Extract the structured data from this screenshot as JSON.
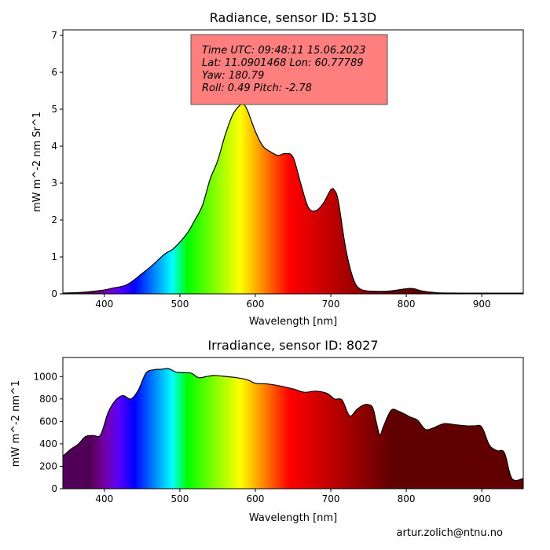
{
  "footer_text": "artur.zolich@ntnu.no",
  "chart_data": [
    {
      "type": "area",
      "title": "Radiance, sensor ID: 513D",
      "xlabel": "Wavelength [nm]",
      "ylabel": "mW m^-2 nm Sr^1",
      "xlim": [
        345,
        955
      ],
      "ylim": [
        0,
        7.15
      ],
      "xticks": [
        400,
        500,
        600,
        700,
        800,
        900
      ],
      "yticks": [
        0,
        1,
        2,
        3,
        4,
        5,
        6,
        7
      ],
      "fill": "spectrum colors by wavelength",
      "x": [
        345,
        370,
        395,
        410,
        430,
        450,
        465,
        480,
        490,
        500,
        510,
        520,
        530,
        540,
        550,
        560,
        570,
        580,
        585,
        590,
        600,
        610,
        620,
        630,
        640,
        650,
        660,
        670,
        680,
        690,
        700,
        705,
        710,
        720,
        730,
        740,
        760,
        780,
        800,
        810,
        820,
        840,
        870,
        900,
        930,
        955
      ],
      "y": [
        0.02,
        0.04,
        0.09,
        0.15,
        0.25,
        0.55,
        0.8,
        1.08,
        1.2,
        1.4,
        1.65,
        2.0,
        2.4,
        3.1,
        3.6,
        4.3,
        4.85,
        5.12,
        5.13,
        4.95,
        4.4,
        4.0,
        3.85,
        3.75,
        3.8,
        3.7,
        3.0,
        2.35,
        2.25,
        2.45,
        2.82,
        2.8,
        2.5,
        1.2,
        0.4,
        0.12,
        0.07,
        0.08,
        0.14,
        0.14,
        0.08,
        0.03,
        0.02,
        0.02,
        0.02,
        0.02
      ],
      "annotation": {
        "lines": [
          "Time UTC: 09:48:11 15.06.2023",
          "Lat: 11.0901468 Lon: 60.77789",
          "Yaw: 180.79",
          "Roll: 0.49 Pitch: -2.78"
        ],
        "background": "#ff7f7f"
      }
    },
    {
      "type": "area",
      "title": "Irradiance, sensor ID: 8027",
      "xlabel": "Wavelength [nm]",
      "ylabel": "mW m^-2 nm^1",
      "xlim": [
        345,
        955
      ],
      "ylim": [
        0,
        1170
      ],
      "xticks": [
        400,
        500,
        600,
        700,
        800,
        900
      ],
      "yticks": [
        0,
        200,
        400,
        600,
        800,
        1000
      ],
      "fill": "spectrum colors by wavelength",
      "x": [
        345,
        355,
        365,
        375,
        385,
        395,
        405,
        415,
        425,
        435,
        445,
        455,
        465,
        475,
        485,
        495,
        505,
        515,
        525,
        535,
        545,
        555,
        575,
        590,
        600,
        615,
        630,
        650,
        665,
        680,
        695,
        705,
        715,
        725,
        735,
        745,
        755,
        760,
        765,
        770,
        780,
        790,
        805,
        815,
        825,
        835,
        850,
        865,
        880,
        890,
        900,
        910,
        920,
        930,
        940,
        955
      ],
      "y": [
        290,
        350,
        395,
        465,
        475,
        480,
        680,
        790,
        830,
        800,
        880,
        1030,
        1060,
        1065,
        1070,
        1040,
        1035,
        1030,
        990,
        1000,
        1010,
        1005,
        990,
        970,
        940,
        935,
        920,
        890,
        860,
        870,
        850,
        800,
        790,
        650,
        710,
        750,
        730,
        600,
        480,
        560,
        700,
        690,
        640,
        610,
        530,
        540,
        580,
        570,
        560,
        560,
        550,
        390,
        340,
        320,
        90,
        90
      ]
    }
  ]
}
